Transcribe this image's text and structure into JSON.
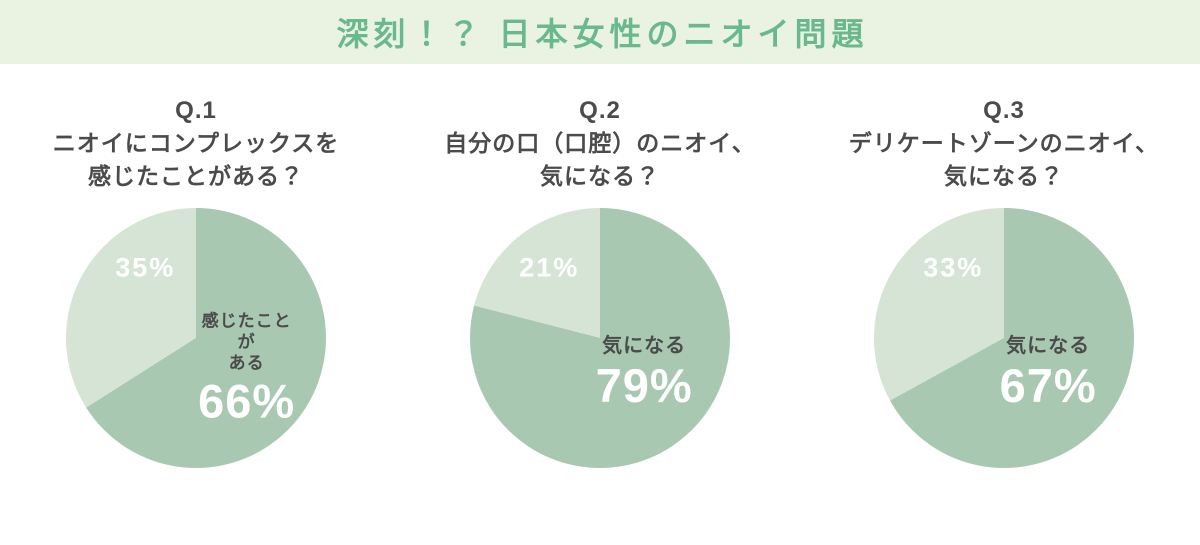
{
  "title": "深刻！？ 日本女性のニオイ問題",
  "colors": {
    "banner_bg": "#eaf2e2",
    "title_text": "#6ab98e",
    "slice_main": "#a9c8b1",
    "slice_rest": "#d6e4d6",
    "heading_text": "#4b4b4b",
    "percent_text": "#ffffff"
  },
  "chart_data": [
    {
      "type": "pie",
      "question_no": "Q.1",
      "question": "ニオイにコンプレックスを\n感じたことがある？",
      "legend_position": "inside",
      "slices": [
        {
          "label": "感じたことが\nある",
          "value": 66,
          "display": "66%",
          "color": "#a9c8b1"
        },
        {
          "label": "",
          "value": 35,
          "display": "35%",
          "color": "#d6e4d6"
        }
      ]
    },
    {
      "type": "pie",
      "question_no": "Q.2",
      "question": "自分の口（口腔）のニオイ、\n気になる？",
      "legend_position": "inside",
      "slices": [
        {
          "label": "気になる",
          "value": 79,
          "display": "79%",
          "color": "#a9c8b1"
        },
        {
          "label": "",
          "value": 21,
          "display": "21%",
          "color": "#d6e4d6"
        }
      ]
    },
    {
      "type": "pie",
      "question_no": "Q.3",
      "question": "デリケートゾーンのニオイ、\n気になる？",
      "legend_position": "inside",
      "slices": [
        {
          "label": "気になる",
          "value": 67,
          "display": "67%",
          "color": "#a9c8b1"
        },
        {
          "label": "",
          "value": 33,
          "display": "33%",
          "color": "#d6e4d6"
        }
      ]
    }
  ]
}
